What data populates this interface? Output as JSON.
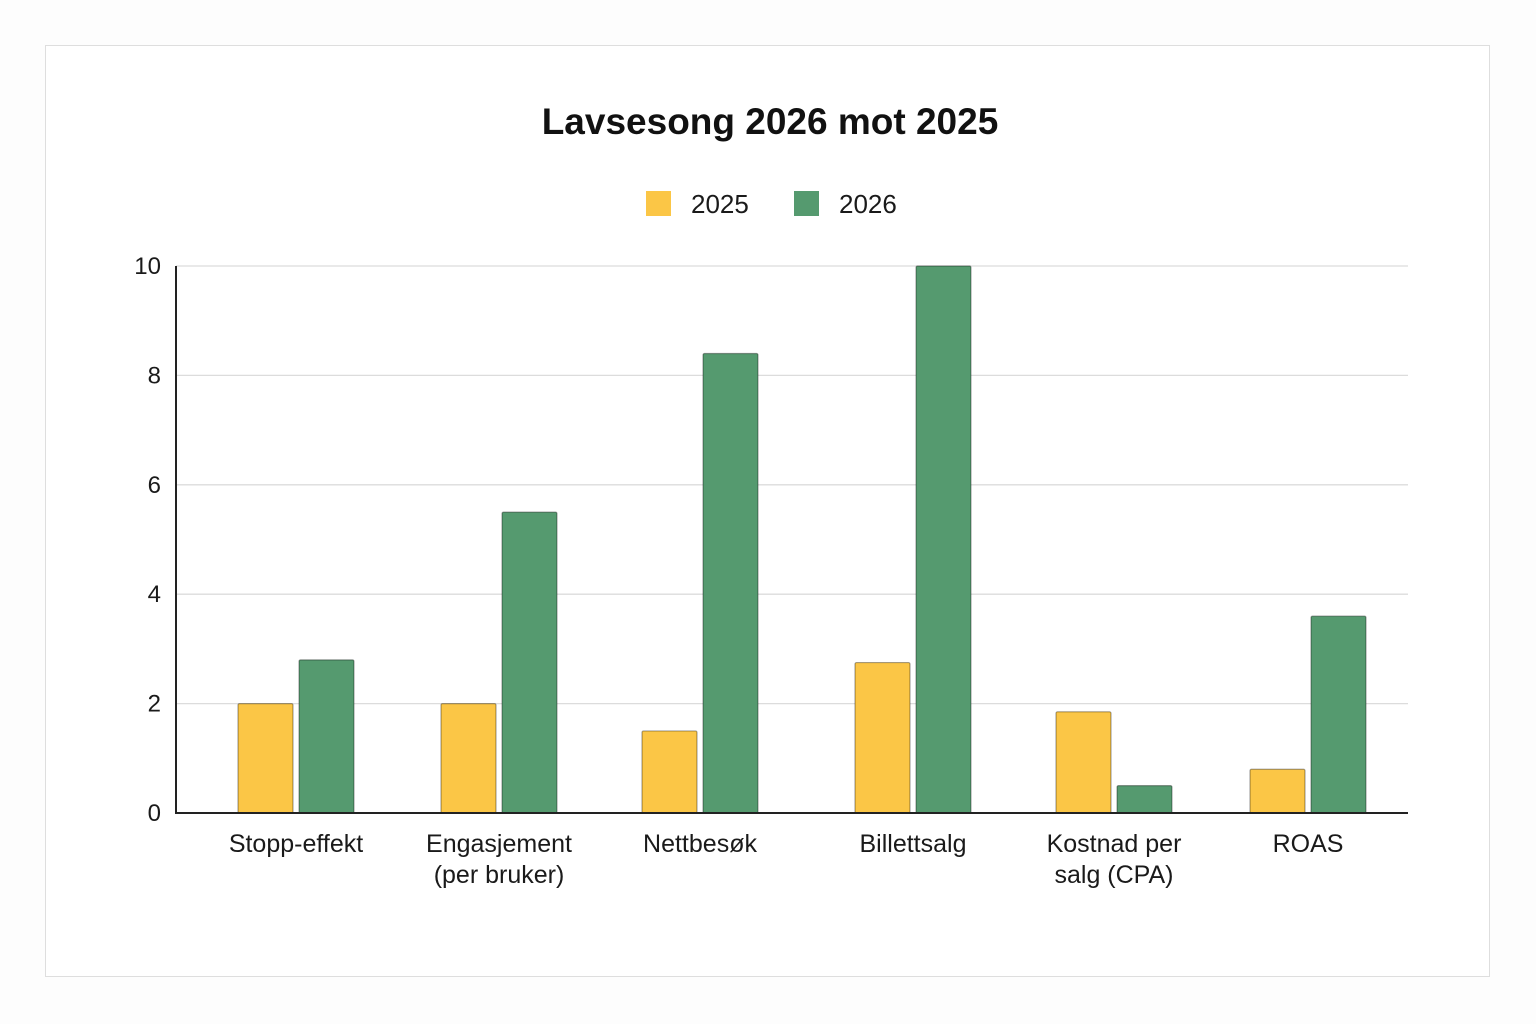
{
  "chart_data": {
    "type": "bar",
    "title": "Lavsesong 2026 mot 2025",
    "xlabel": "",
    "ylabel": "",
    "ylim": [
      0,
      10
    ],
    "yticks": [
      "0",
      "2",
      "4",
      "6",
      "8",
      "10"
    ],
    "categories": [
      [
        "Stopp-effekt"
      ],
      [
        "Engasjement",
        "(per bruker)"
      ],
      [
        "Nettbesøk"
      ],
      [
        "Billettsalg"
      ],
      [
        "Kostnad per",
        "salg (CPA)"
      ],
      [
        "ROAS"
      ]
    ],
    "series": [
      {
        "name": "2025",
        "color": "#fbc646",
        "values": [
          2.0,
          2.0,
          1.5,
          2.75,
          1.85,
          0.8
        ]
      },
      {
        "name": "2026",
        "color": "#559a6f",
        "values": [
          2.8,
          5.5,
          8.4,
          10.0,
          0.5,
          3.6
        ]
      }
    ],
    "grid": true,
    "legend": "top-center"
  }
}
